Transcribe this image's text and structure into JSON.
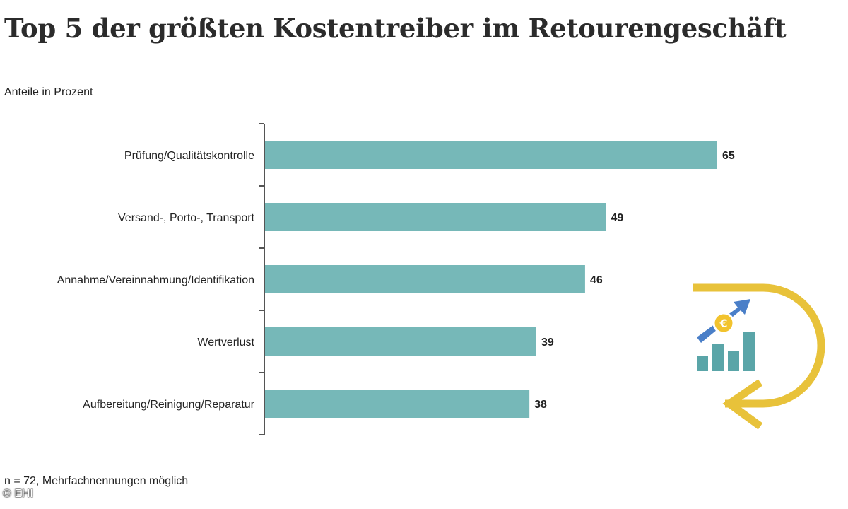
{
  "header": {
    "title": "Top 5 der größten Kostentreiber im Retourengeschäft",
    "subtitle": "Anteile in Prozent"
  },
  "footer": {
    "note": "n = 72, Mehrfachnennungen möglich",
    "copyright": "© EHI"
  },
  "colors": {
    "bar": "#76b8b8",
    "axis": "#555555",
    "logo_ring": "#e8c23a",
    "logo_bars": "#5aa5a8",
    "logo_arrow": "#4a7fc8",
    "logo_coin": "#f2c32e"
  },
  "chart_data": {
    "type": "bar",
    "orientation": "horizontal",
    "categories": [
      "Prüfung/Qualitätskontrolle",
      "Versand-, Porto-, Transport",
      "Annahme/Vereinnahmung/Identifikation",
      "Wertverlust",
      "Aufbereitung/Reinigung/Reparatur"
    ],
    "values": [
      65,
      49,
      46,
      39,
      38
    ],
    "value_labels": [
      "65",
      "49",
      "46",
      "39",
      "38"
    ],
    "title": "Top 5 der größten Kostentreiber im Retourengeschäft",
    "xlabel": "",
    "ylabel": "",
    "xlim": [
      0,
      65
    ],
    "grid": false,
    "legend": "none"
  }
}
